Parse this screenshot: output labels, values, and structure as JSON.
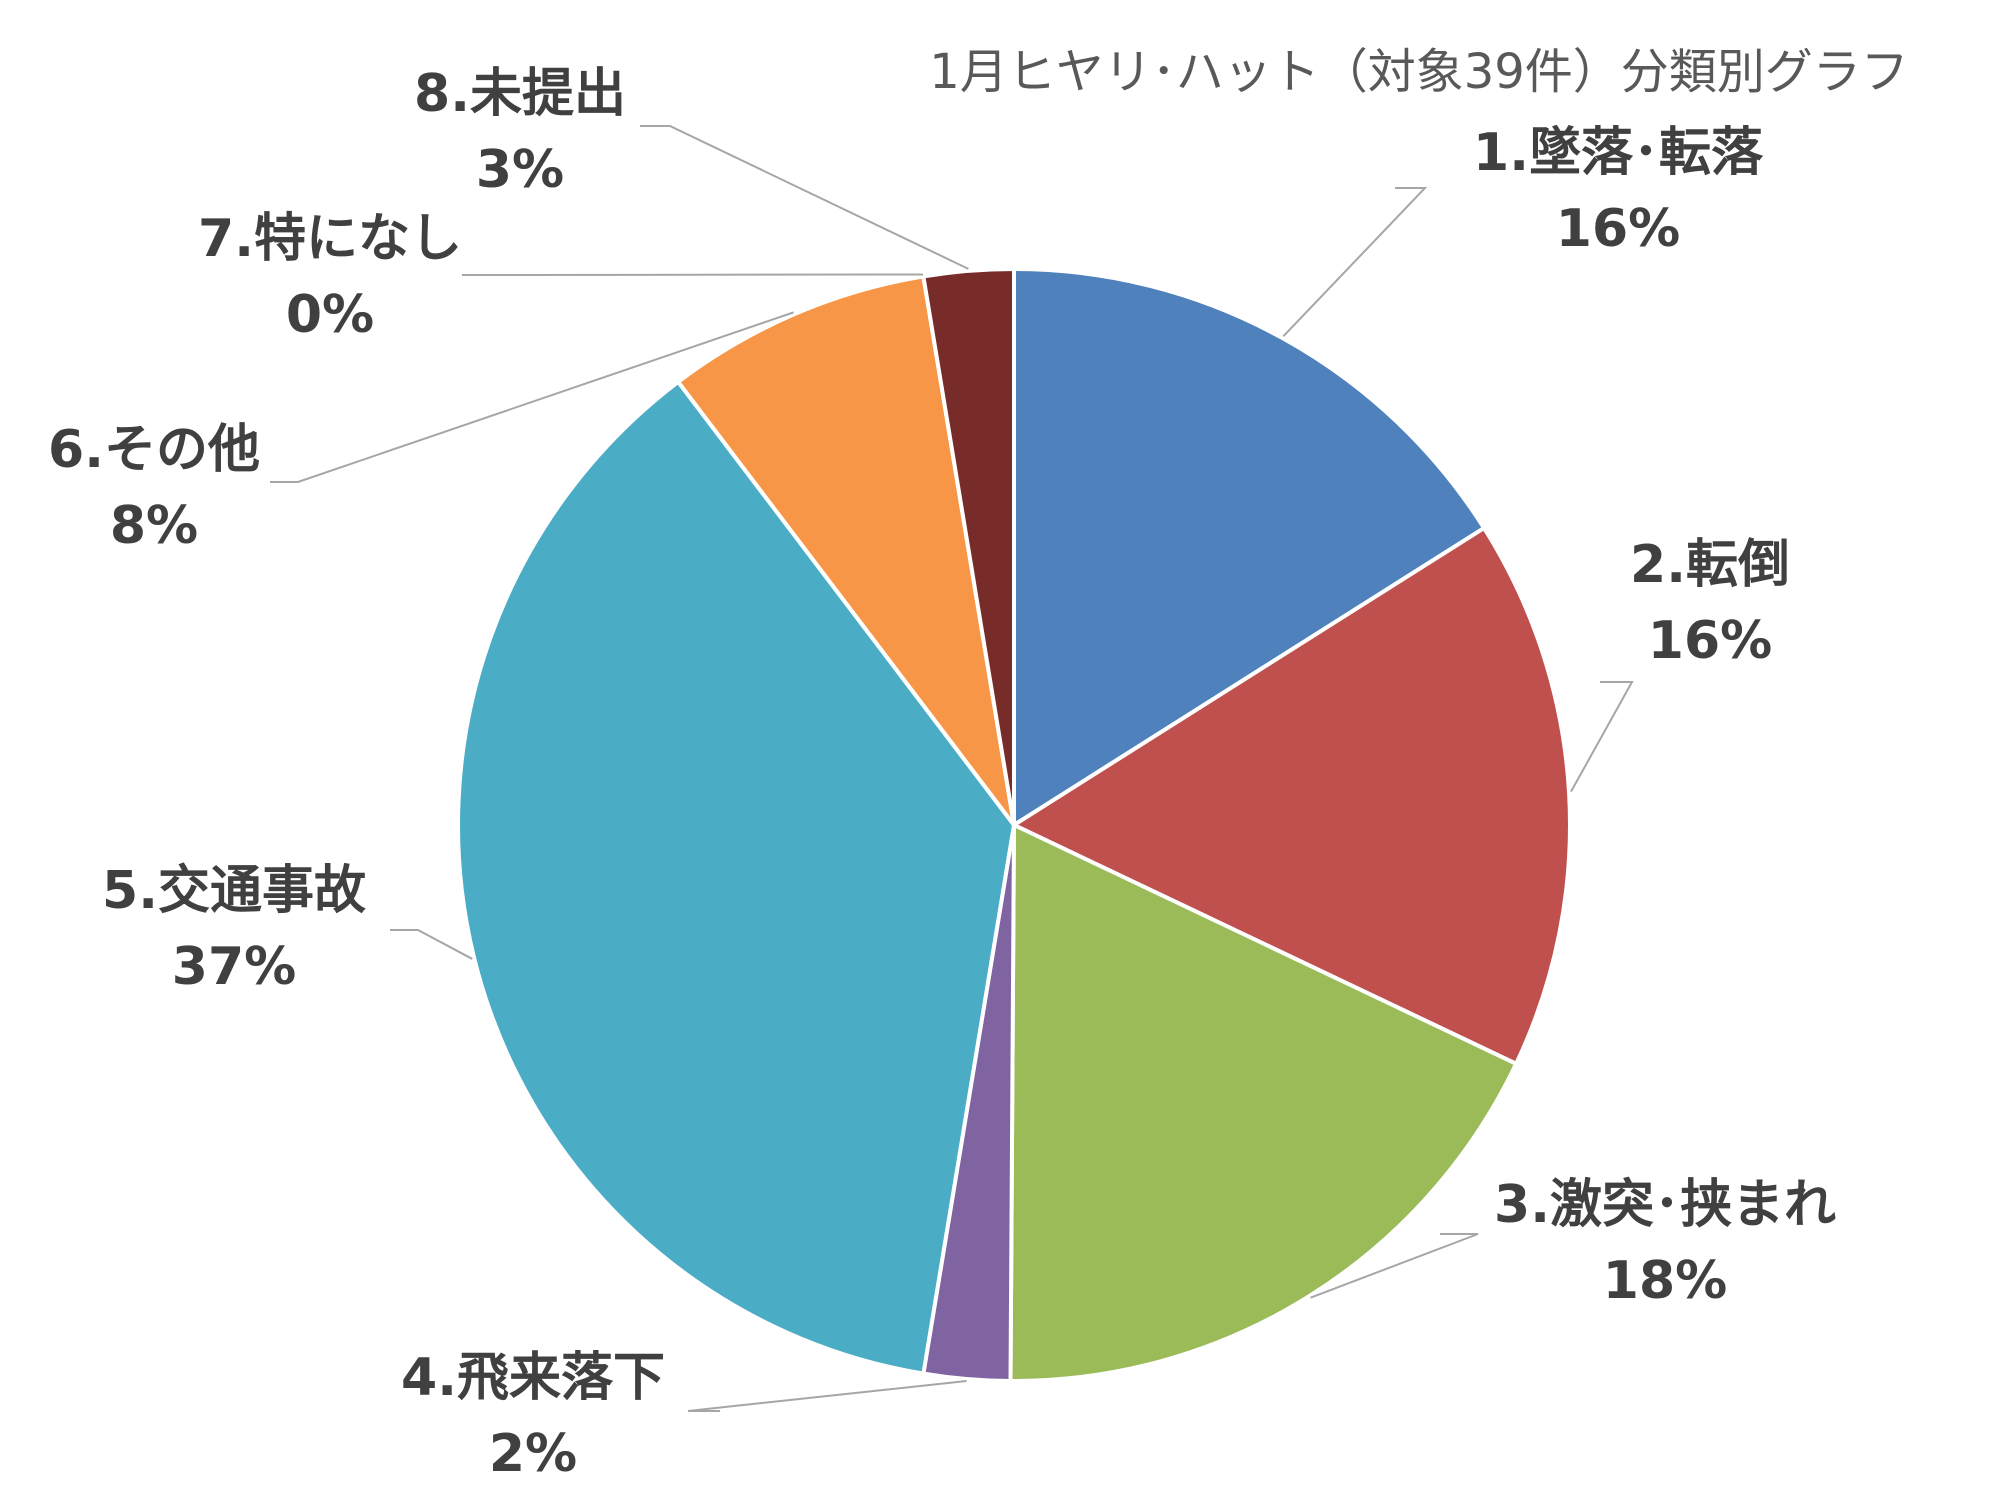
{
  "chart_data": {
    "type": "pie",
    "title": "1月ヒヤリ･ハット（対象39件）分類別グラフ",
    "slices": [
      {
        "label": "1.墜落･転落",
        "value": 16,
        "value_label": "16%",
        "color": "#4f81bd"
      },
      {
        "label": "2.転倒",
        "value": 16,
        "value_label": "16%",
        "color": "#c0504d"
      },
      {
        "label": "3.激突･挟まれ",
        "value": 18,
        "value_label": "18%",
        "color": "#9bbb59"
      },
      {
        "label": "4.飛来落下",
        "value": 2.5,
        "value_label": "2%",
        "color": "#8064a2"
      },
      {
        "label": "5.交通事故",
        "value": 37,
        "value_label": "37%",
        "color": "#4bacc6"
      },
      {
        "label": "6.その他",
        "value": 7.7,
        "value_label": "8%",
        "color": "#f79646"
      },
      {
        "label": "7.特になし",
        "value": 0,
        "value_label": "0%",
        "color": "#2c4d75"
      },
      {
        "label": "8.未提出",
        "value": 2.6,
        "value_label": "3%",
        "color": "#772c2a"
      }
    ],
    "legend": "none"
  }
}
